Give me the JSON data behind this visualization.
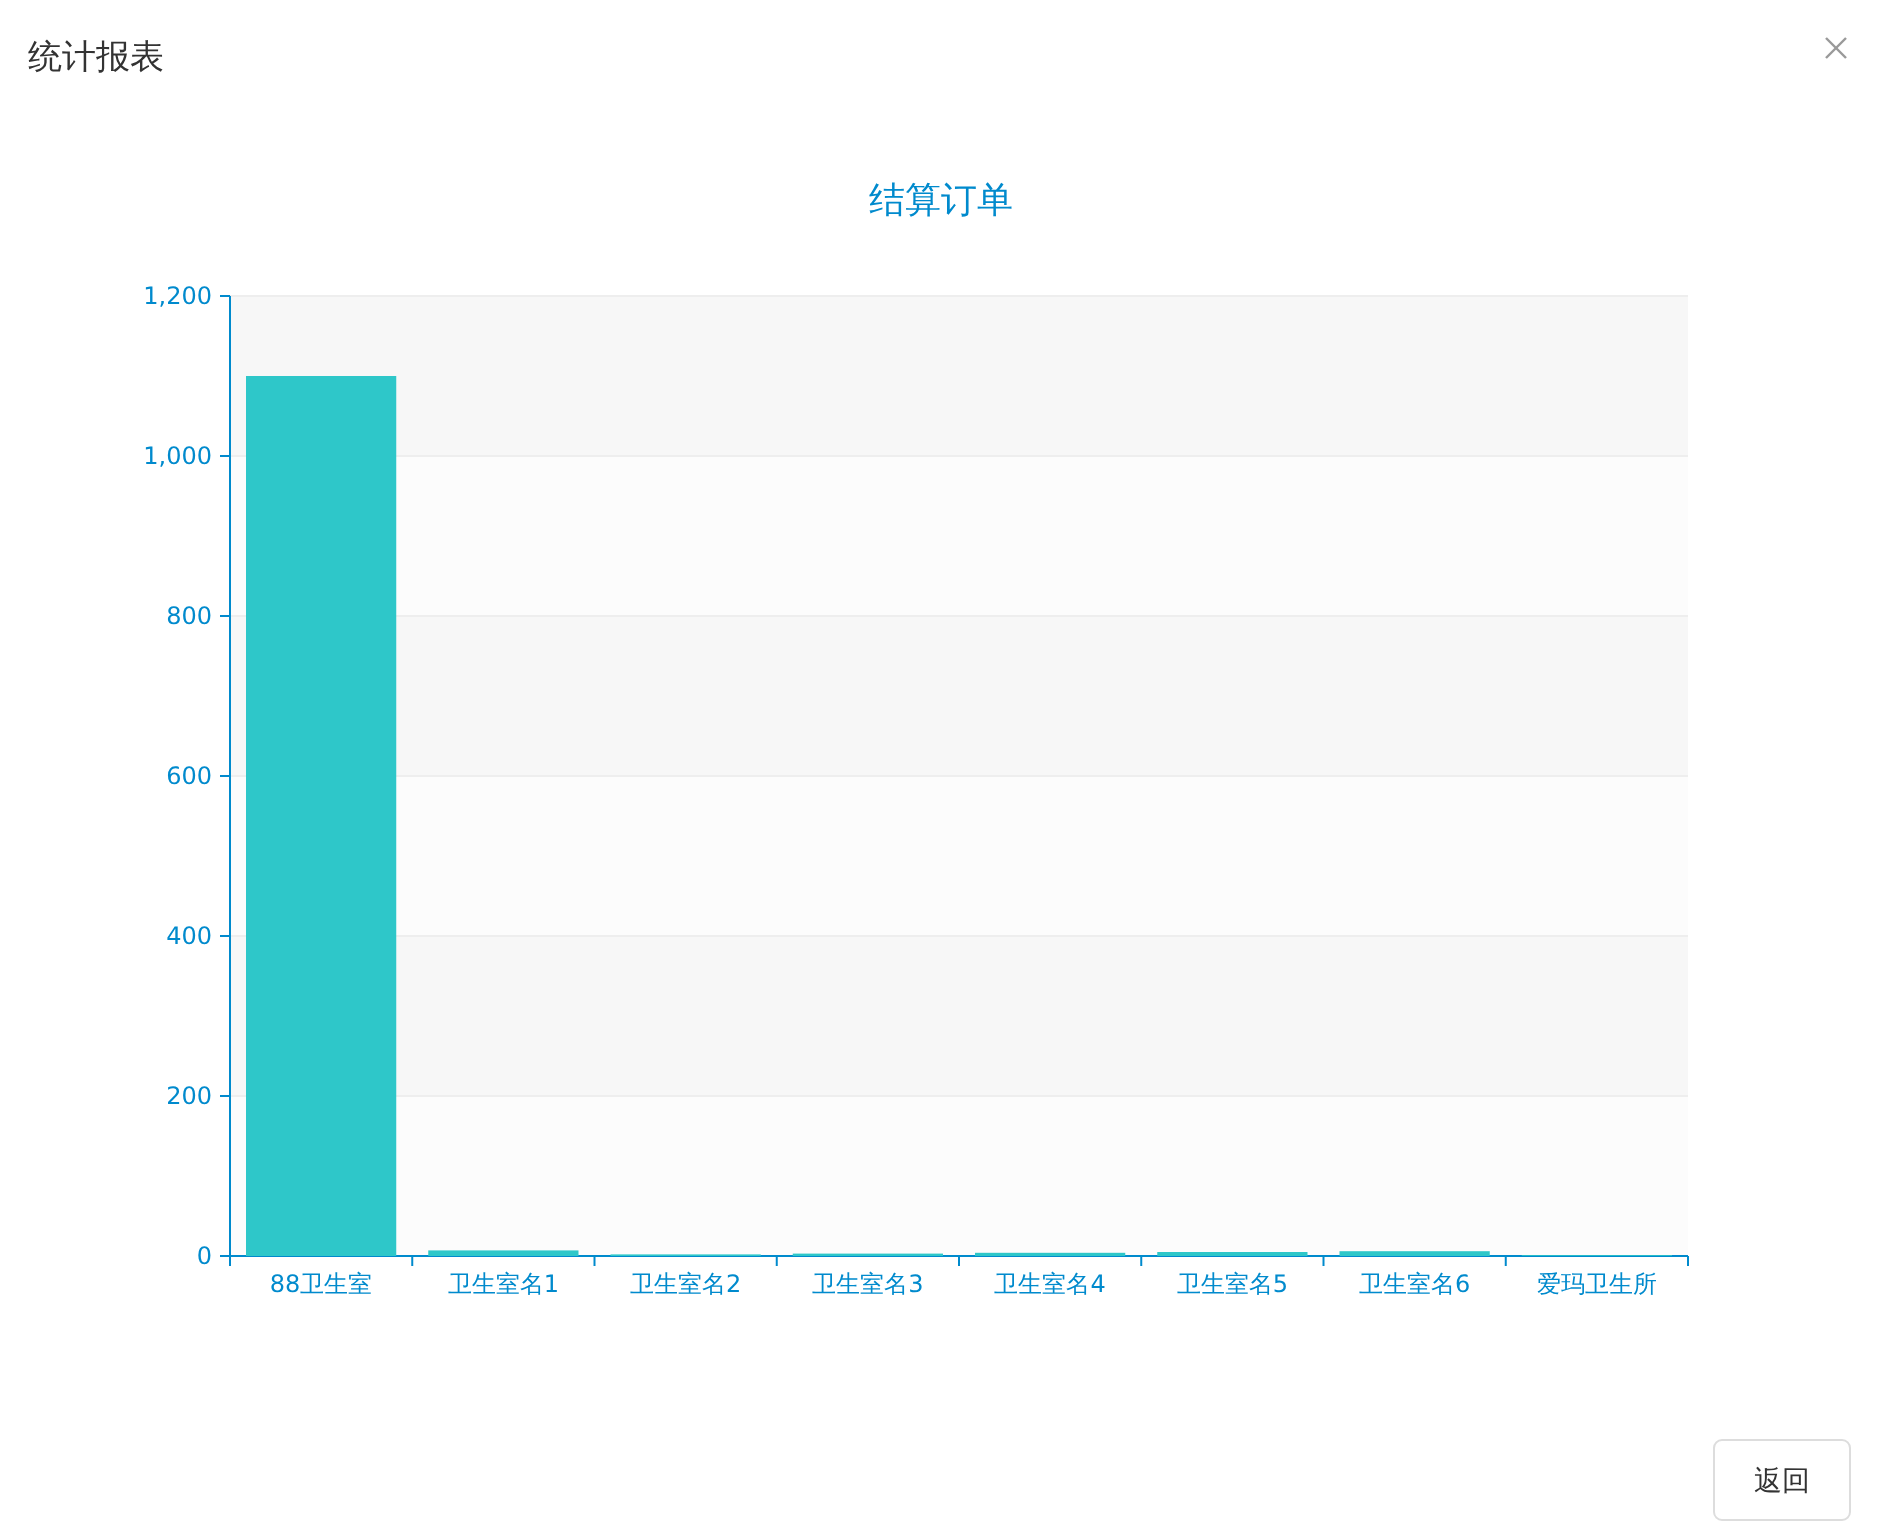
{
  "chart_data": {
    "type": "bar",
    "title": "结算订单",
    "categories": [
      "88卫生室",
      "卫生室名1",
      "卫生室名2",
      "卫生室名3",
      "卫生室名4",
      "卫生室名5",
      "卫生室名6",
      "爱玛卫生所"
    ],
    "values": [
      1100,
      7,
      2,
      3,
      4,
      5,
      6,
      1
    ],
    "color": "#2ec7c9",
    "ylim": [
      0,
      1200
    ],
    "yticks": [
      0,
      {
        "value": 200,
        "label": "200"
      },
      400,
      600,
      800,
      {
        "value": 1000,
        "label": "1,000"
      },
      {
        "value": 1200,
        "label": "1,200"
      }
    ],
    "grid": "y",
    "annotations": [
      "统计报表",
      "返回"
    ]
  }
}
